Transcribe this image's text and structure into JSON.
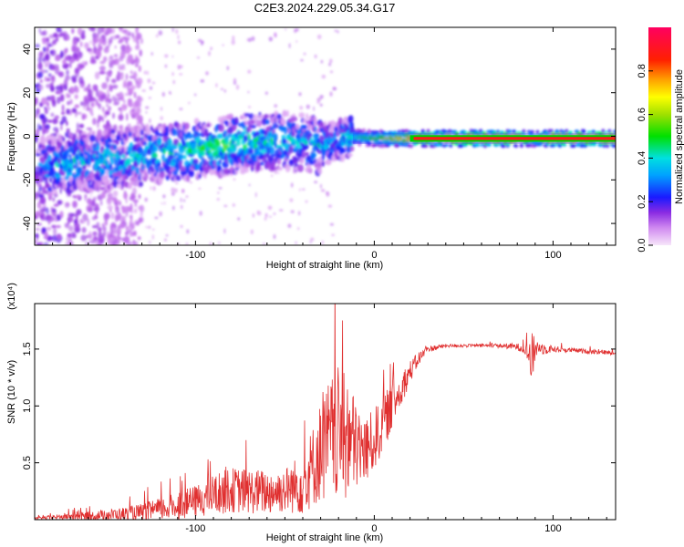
{
  "title": "C2E3.2024.229.05.34.G17",
  "chart_data": [
    {
      "type": "heatmap",
      "name": "spectrogram",
      "xlabel": "Height of straight line (km)",
      "ylabel": "Frequency (Hz)",
      "xlim": [
        -190,
        135
      ],
      "ylim": [
        -50,
        50
      ],
      "xticks": [
        -100,
        0,
        100
      ],
      "yticks": [
        -40,
        -20,
        0,
        20,
        40
      ],
      "colorbar": {
        "label": "Normalized spectral amplitude",
        "range": [
          0.0,
          1.0
        ],
        "ticks": [
          0.0,
          0.2,
          0.4,
          0.6,
          0.8
        ]
      },
      "ridge": {
        "description_points_x": [
          -185,
          -170,
          -150,
          -130,
          -110,
          -90,
          -70,
          -50,
          -40,
          -30,
          -20,
          -15,
          0,
          20,
          40,
          60,
          80,
          90,
          100,
          120,
          135
        ],
        "freq": [
          -14,
          -12,
          -11,
          -9,
          -7,
          -5,
          -3,
          -2,
          -3,
          -4,
          -2,
          0,
          -1,
          -1,
          -1,
          -1,
          -1,
          -1,
          -1,
          -1,
          -1
        ],
        "amplitude": [
          0.3,
          0.35,
          0.35,
          0.35,
          0.4,
          0.45,
          0.4,
          0.35,
          0.3,
          0.35,
          0.3,
          0.4,
          0.55,
          0.8,
          0.95,
          1.0,
          1.0,
          0.6,
          1.0,
          1.0,
          1.0
        ]
      }
    },
    {
      "type": "line",
      "name": "snr",
      "xlabel": "Height of straight line (km)",
      "ylabel": "SNR (10 * v/v)",
      "yscale_label": "(x10⁴)",
      "xlim": [
        -190,
        135
      ],
      "ylim": [
        0,
        1.9
      ],
      "xticks": [
        -100,
        0,
        100
      ],
      "yticks": [
        0.5,
        1.0,
        1.5
      ],
      "ytick_labels": [
        "0.5",
        "1.0",
        "1.5"
      ],
      "color": "#e03030",
      "series": [
        {
          "name": "SNR envelope",
          "x": [
            -190,
            -180,
            -170,
            -160,
            -150,
            -140,
            -130,
            -120,
            -110,
            -100,
            -90,
            -80,
            -70,
            -60,
            -50,
            -40,
            -35,
            -30,
            -25,
            -20,
            -15,
            -10,
            -5,
            0,
            5,
            10,
            15,
            20,
            25,
            30,
            40,
            50,
            60,
            70,
            80,
            85,
            88,
            90,
            92,
            95,
            100,
            110,
            120,
            130,
            135
          ],
          "values": [
            0.01,
            0.02,
            0.03,
            0.03,
            0.04,
            0.05,
            0.06,
            0.09,
            0.12,
            0.16,
            0.22,
            0.26,
            0.25,
            0.24,
            0.26,
            0.32,
            0.45,
            0.6,
            0.7,
            0.75,
            0.7,
            0.65,
            0.6,
            0.7,
            0.85,
            1.0,
            1.15,
            1.3,
            1.42,
            1.5,
            1.53,
            1.53,
            1.53,
            1.53,
            1.52,
            1.5,
            1.4,
            1.5,
            1.52,
            1.5,
            1.5,
            1.49,
            1.48,
            1.47,
            1.47
          ],
          "spread": [
            0.01,
            0.02,
            0.03,
            0.04,
            0.05,
            0.06,
            0.08,
            0.1,
            0.12,
            0.14,
            0.18,
            0.2,
            0.2,
            0.2,
            0.2,
            0.28,
            0.35,
            0.45,
            0.55,
            0.6,
            0.55,
            0.4,
            0.3,
            0.28,
            0.25,
            0.2,
            0.15,
            0.1,
            0.06,
            0.03,
            0.015,
            0.015,
            0.015,
            0.02,
            0.03,
            0.05,
            0.25,
            0.1,
            0.06,
            0.05,
            0.03,
            0.02,
            0.02,
            0.02,
            0.02
          ]
        }
      ]
    }
  ]
}
